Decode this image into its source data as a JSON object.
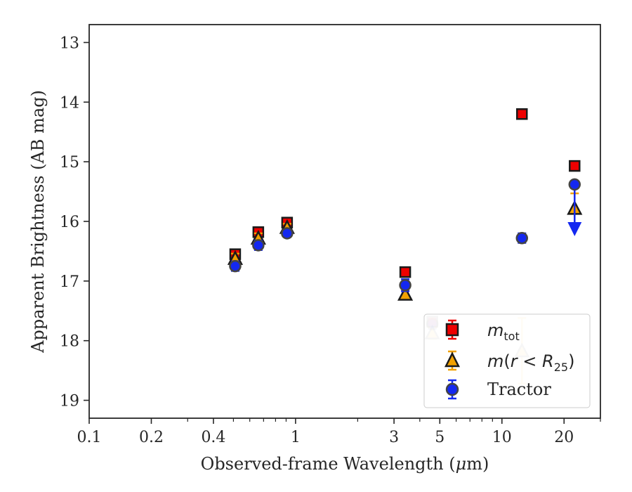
{
  "chart_data": {
    "type": "scatter",
    "xlabel_main": "Observed-frame Wavelength (",
    "xlabel_unit_mu": "μ",
    "xlabel_unit_rest": "m)",
    "ylabel": "Apparent Brightness (AB mag)",
    "x_scale": "log",
    "xlim": [
      0.1,
      30
    ],
    "ylim": [
      19.3,
      12.7
    ],
    "y_inverted": true,
    "x_ticks": [
      {
        "value": 0.1,
        "label": "0.1"
      },
      {
        "value": 0.2,
        "label": "0.2"
      },
      {
        "value": 0.4,
        "label": "0.4"
      },
      {
        "value": 1,
        "label": "1"
      },
      {
        "value": 3,
        "label": "3"
      },
      {
        "value": 5,
        "label": "5"
      },
      {
        "value": 10,
        "label": "10"
      },
      {
        "value": 20,
        "label": "20"
      }
    ],
    "x_minor_ticks": [
      0.3,
      0.5,
      0.6,
      0.7,
      0.8,
      0.9,
      2,
      4,
      6,
      7,
      8,
      9,
      30
    ],
    "y_ticks": [
      {
        "value": 13,
        "label": "13"
      },
      {
        "value": 14,
        "label": "14"
      },
      {
        "value": 15,
        "label": "15"
      },
      {
        "value": 16,
        "label": "16"
      },
      {
        "value": 17,
        "label": "17"
      },
      {
        "value": 18,
        "label": "18"
      },
      {
        "value": 19,
        "label": "19"
      }
    ],
    "grid": false,
    "legend_position": "bottom-right",
    "legend": {
      "m_tot_m": "m",
      "m_tot_sub": "tot",
      "m_r_m": "m",
      "m_r_open": "(",
      "m_r_r": "r",
      "m_r_lt": " < ",
      "m_r_R": "R",
      "m_r_sub": "25",
      "m_r_close": ")",
      "tractor": "Tractor"
    },
    "series": [
      {
        "key": "m_tot",
        "marker": "square",
        "face_color": "#ee0000",
        "edge_color": "#1a1a1a",
        "points": [
          {
            "x": 0.51,
            "y": 16.55,
            "err": 0.08
          },
          {
            "x": 0.66,
            "y": 16.18,
            "err": 0.08
          },
          {
            "x": 0.91,
            "y": 16.02,
            "err": 0.06
          },
          {
            "x": 3.4,
            "y": 16.85,
            "err": 0.06
          },
          {
            "x": 4.6,
            "y": 17.68,
            "err": 0.08,
            "faded": true
          },
          {
            "x": 12.5,
            "y": 14.2,
            "err": 0.06
          },
          {
            "x": 22.5,
            "y": 15.07,
            "err": 0.05
          }
        ]
      },
      {
        "key": "m_r25",
        "marker": "triangle",
        "face_color": "#f2a100",
        "edge_color": "#1a1a1a",
        "points": [
          {
            "x": 0.51,
            "y": 16.62,
            "err": 0.08
          },
          {
            "x": 0.66,
            "y": 16.28,
            "err": 0.08
          },
          {
            "x": 0.91,
            "y": 16.1,
            "err": 0.06
          },
          {
            "x": 3.4,
            "y": 17.22,
            "err": 0.08
          },
          {
            "x": 4.6,
            "y": 17.87,
            "err": 0.1,
            "faded": true
          },
          {
            "x": 12.5,
            "y": 18.17,
            "err": 0.55,
            "faded": true
          },
          {
            "x": 22.5,
            "y": 15.78,
            "err": 0.25
          }
        ]
      },
      {
        "key": "tractor",
        "marker": "circle",
        "face_color": "#1428f0",
        "edge_color": "#444444",
        "points": [
          {
            "x": 0.51,
            "y": 16.75,
            "err": 0.08
          },
          {
            "x": 0.66,
            "y": 16.4,
            "err": 0.08
          },
          {
            "x": 0.91,
            "y": 16.2,
            "err": 0.06
          },
          {
            "x": 3.4,
            "y": 17.07,
            "err": 0.1
          },
          {
            "x": 4.6,
            "y": 17.72,
            "err": 0.08,
            "faded": true
          },
          {
            "x": 12.5,
            "y": 16.28,
            "err": 0.08
          },
          {
            "x": 22.5,
            "y": 15.38,
            "err": 0.05,
            "upper_limit_to": 16.2
          }
        ]
      }
    ]
  }
}
